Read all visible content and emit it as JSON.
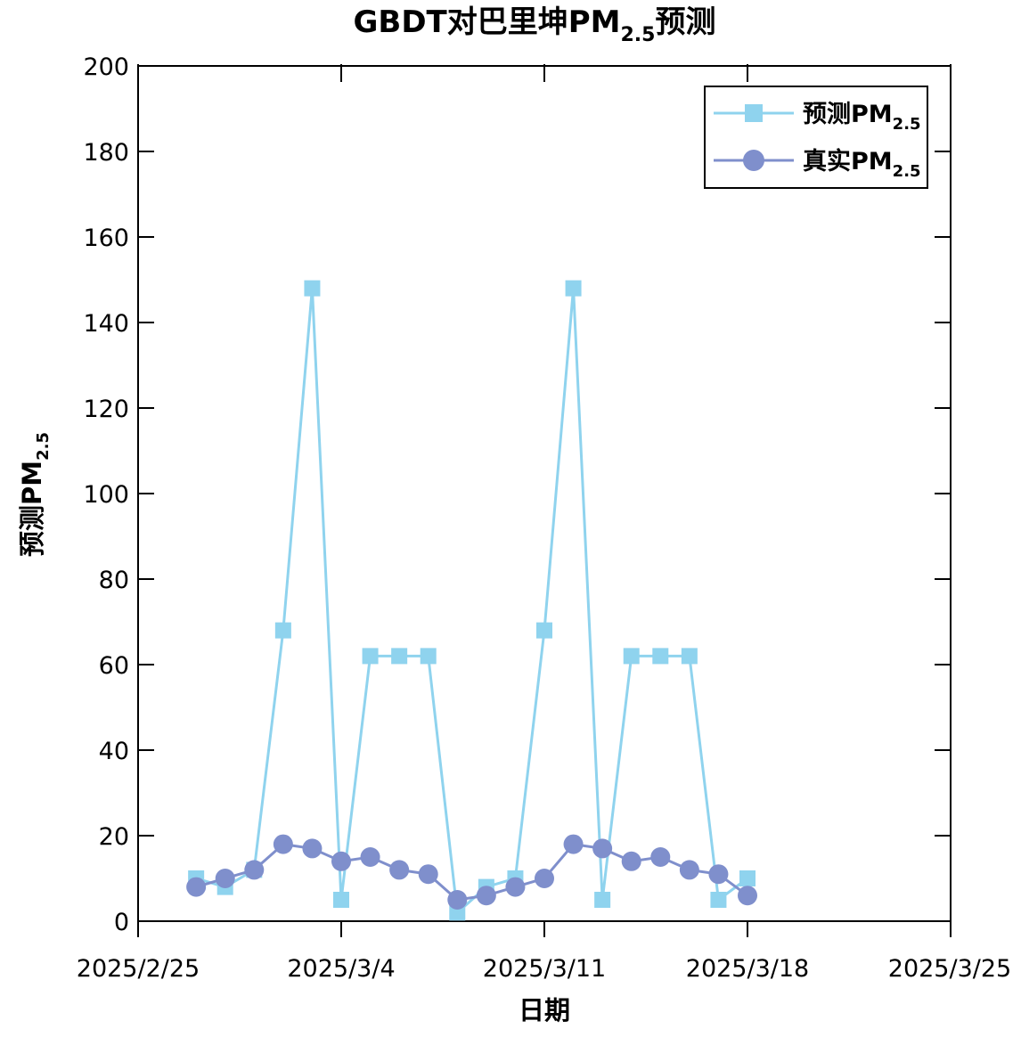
{
  "chart_data": {
    "type": "line",
    "title": "GBDT对巴里坤PM2.5预测",
    "title_parts": {
      "main": "GBDT对巴里坤PM",
      "sub": "2.5",
      "tail": "预测"
    },
    "xlabel": "日期",
    "ylabel": "预测PM2.5",
    "ylabel_parts": {
      "main": "预测PM",
      "sub": "2.5"
    },
    "xlim": [
      "2025/2/25",
      "2025/3/25"
    ],
    "ylim": [
      0,
      200
    ],
    "x_ticks": [
      "2025/2/25",
      "2025/3/4",
      "2025/3/11",
      "2025/3/18",
      "2025/3/25"
    ],
    "y_ticks": [
      0,
      20,
      40,
      60,
      80,
      100,
      120,
      140,
      160,
      180,
      200
    ],
    "grid": false,
    "legend_position": "top-right",
    "x": [
      "2025/2/27",
      "2025/2/28",
      "2025/3/1",
      "2025/3/2",
      "2025/3/3",
      "2025/3/4",
      "2025/3/5",
      "2025/3/6",
      "2025/3/7",
      "2025/3/8",
      "2025/3/9",
      "2025/3/10",
      "2025/3/11",
      "2025/3/12",
      "2025/3/13",
      "2025/3/14",
      "2025/3/15",
      "2025/3/16",
      "2025/3/17",
      "2025/3/18"
    ],
    "series": [
      {
        "name": "预测PM2.5",
        "legend_main": "预测PM",
        "legend_sub": "2.5",
        "color": "#8fd3ee",
        "marker": "square",
        "values": [
          10,
          8,
          12,
          68,
          148,
          5,
          62,
          62,
          62,
          2,
          8,
          10,
          68,
          148,
          5,
          62,
          62,
          62,
          5,
          10
        ]
      },
      {
        "name": "真实PM2.5",
        "legend_main": "真实PM",
        "legend_sub": "2.5",
        "color": "#7f8fcc",
        "marker": "circle",
        "values": [
          8,
          10,
          12,
          18,
          17,
          14,
          15,
          12,
          11,
          5,
          6,
          8,
          10,
          18,
          17,
          14,
          15,
          12,
          11,
          6
        ]
      }
    ]
  }
}
